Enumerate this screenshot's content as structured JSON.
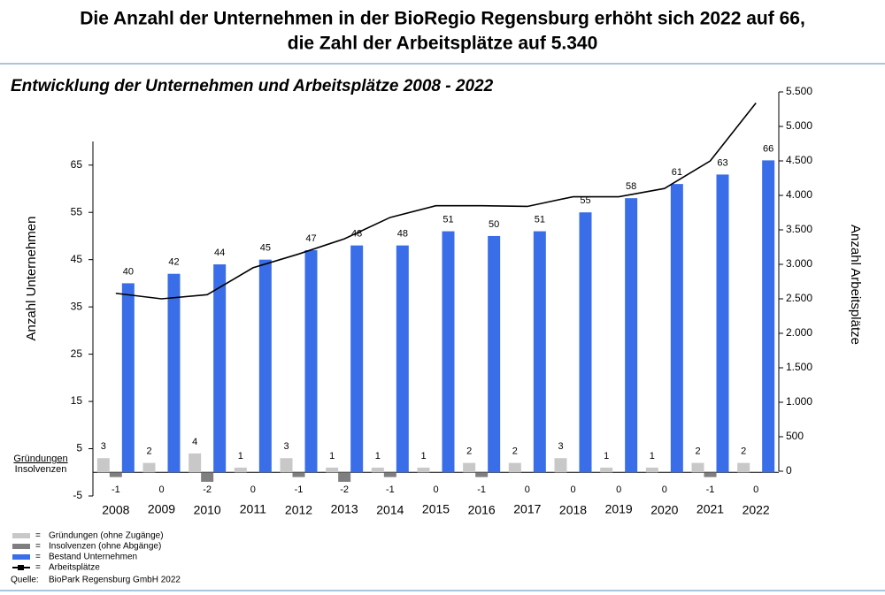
{
  "chart_data": {
    "type": "bar",
    "title": "Die Anzahl der Unternehmen in der BioRegio Regensburg erhöht sich 2022 auf 66,",
    "title_line2": "die Zahl der Arbeitsplätze auf 5.340",
    "subtitle": "Entwicklung der Unternehmen und Arbeitsplätze 2008 - 2022",
    "ylabel": "Anzahl Unternehmen",
    "y2label": "Anzahl Arbeitsplätze",
    "side_labels": [
      "Gründungen",
      "Insolvenzen"
    ],
    "source_label": "Quelle:",
    "source": "BioPark Regensburg GmbH 2022",
    "categories": [
      "2008",
      "2009",
      "2010",
      "2011",
      "2012",
      "2013",
      "2014",
      "2015",
      "2016",
      "2017",
      "2018",
      "2019",
      "2020",
      "2021",
      "2022"
    ],
    "series": [
      {
        "name": "Gründungen (ohne Zugänge)",
        "color": "#c8c8c8",
        "values": [
          3,
          2,
          4,
          1,
          3,
          1,
          1,
          1,
          2,
          2,
          3,
          1,
          1,
          2,
          2
        ]
      },
      {
        "name": "Insolvenzen (ohne Abgänge)",
        "color": "#7f7f7f",
        "values": [
          -1,
          0,
          -2,
          0,
          -1,
          -2,
          -1,
          0,
          -1,
          0,
          0,
          0,
          0,
          -1,
          0
        ]
      },
      {
        "name": "Bestand Unternehmen",
        "color": "#3a6ee8",
        "values": [
          40,
          42,
          44,
          45,
          47,
          48,
          48,
          51,
          50,
          51,
          55,
          58,
          61,
          63,
          66
        ]
      },
      {
        "name": "Arbeitsplätze",
        "color": "#000000",
        "type": "line",
        "axis": "y2",
        "values": [
          2580,
          2500,
          2560,
          2950,
          3150,
          3370,
          3680,
          3850,
          3850,
          3840,
          3980,
          3980,
          4100,
          4500,
          5340
        ]
      }
    ],
    "ylim": [
      -5,
      70
    ],
    "yticks": [
      -5,
      5,
      15,
      25,
      35,
      45,
      55,
      65
    ],
    "y2lim": [
      0,
      5500
    ],
    "y2ticks": [
      0,
      500,
      {
        "value": 1000,
        "label": "1.000"
      },
      {
        "value": 1500,
        "label": "1.500"
      },
      {
        "value": 2000,
        "label": "2.000"
      },
      {
        "value": 2500,
        "label": "2.500"
      },
      {
        "value": 3000,
        "label": "3.000"
      },
      {
        "value": 3500,
        "label": "3.500"
      },
      {
        "value": 4000,
        "label": "4.000"
      },
      {
        "value": 4500,
        "label": "4.500"
      },
      {
        "value": 5000,
        "label": "5.000"
      },
      {
        "value": 5500,
        "label": "5.500"
      }
    ],
    "grid": false
  }
}
